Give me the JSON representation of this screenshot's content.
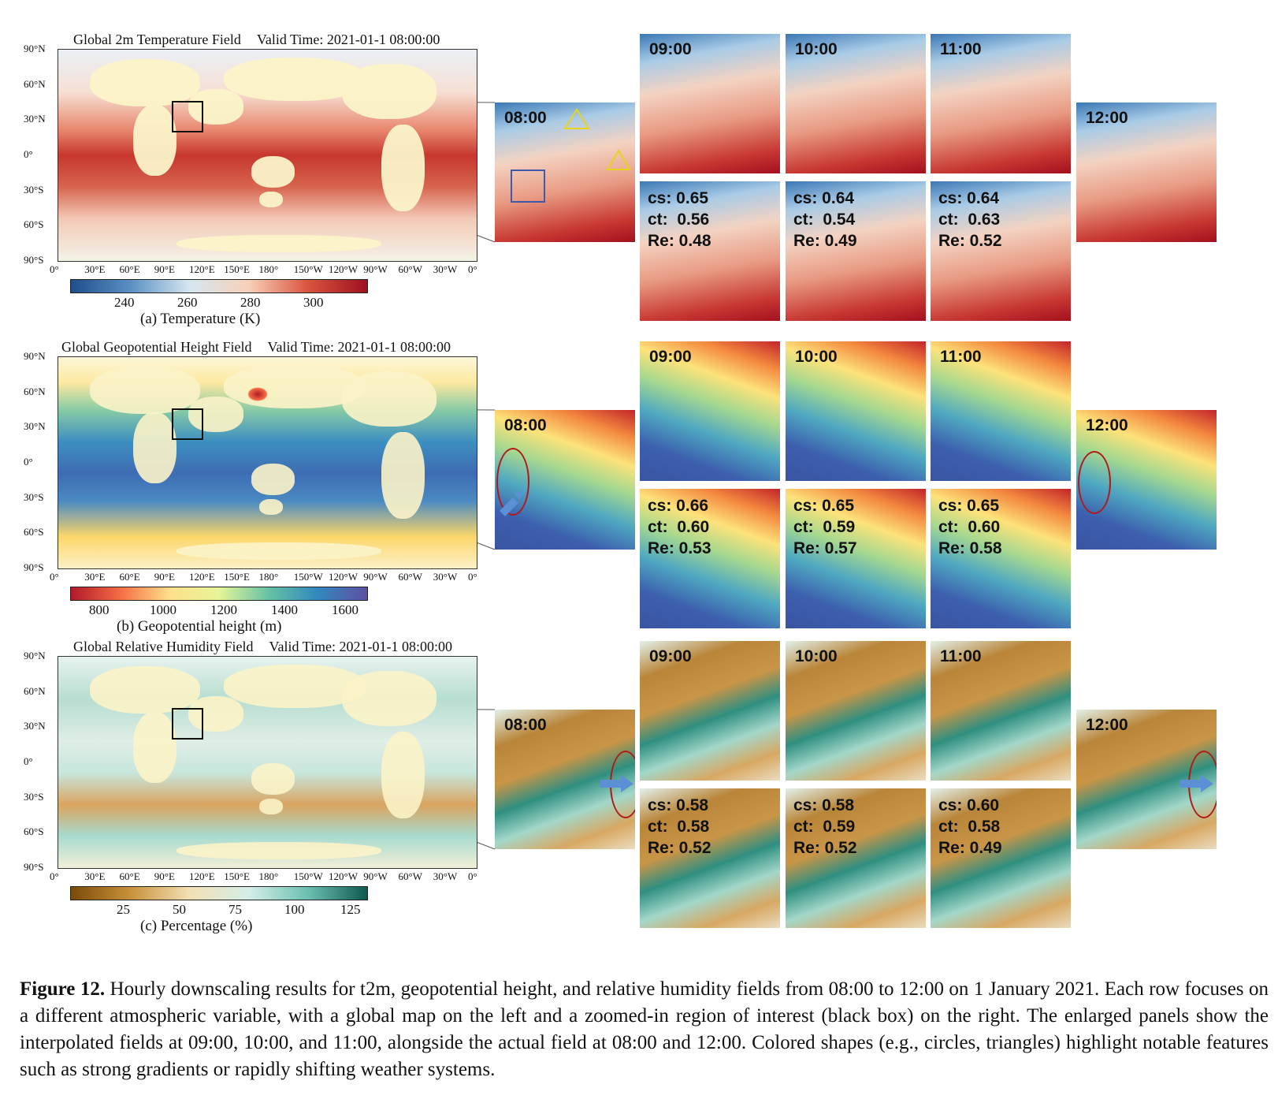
{
  "rows": [
    {
      "id": "t2m",
      "map_title": "Global 2m Temperature Field",
      "valid_time": "Valid Time: 2021-01-1 08:00:00",
      "colorbar": {
        "ticks": [
          "240",
          "260",
          "280",
          "300"
        ],
        "label": "(a) Temperature (K)",
        "colors": [
          "#1f4e8c",
          "#5a8fc2",
          "#d6e6f0",
          "#f7d0b8",
          "#d9543f",
          "#9e1020"
        ]
      },
      "start_tile": "08:00",
      "end_tile": "12:00",
      "top_tiles": [
        "09:00",
        "10:00",
        "11:00"
      ],
      "metrics": [
        {
          "cs": "cs: 0.65",
          "ct": "ct:  0.56",
          "re": "Re: 0.48"
        },
        {
          "cs": "cs: 0.64",
          "ct": "ct:  0.54",
          "re": "Re: 0.49"
        },
        {
          "cs": "cs: 0.64",
          "ct": "ct:  0.63",
          "re": "Re: 0.52"
        }
      ]
    },
    {
      "id": "geopotential",
      "map_title": "Global Geopotential Height Field",
      "valid_time": "Valid Time: 2021-01-1 08:00:00",
      "colorbar": {
        "ticks": [
          "800",
          "1000",
          "1200",
          "1400",
          "1600"
        ],
        "label": "(b) Geopotential height (m)",
        "colors": [
          "#b2182b",
          "#f46d43",
          "#fee08b",
          "#e6f598",
          "#66c2a5",
          "#3288bd",
          "#5e4fa2"
        ]
      },
      "start_tile": "08:00",
      "end_tile": "12:00",
      "top_tiles": [
        "09:00",
        "10:00",
        "11:00"
      ],
      "metrics": [
        {
          "cs": "cs: 0.66",
          "ct": "ct:  0.60",
          "re": "Re: 0.53"
        },
        {
          "cs": "cs: 0.65",
          "ct": "ct:  0.59",
          "re": "Re: 0.57"
        },
        {
          "cs": "cs: 0.65",
          "ct": "ct:  0.60",
          "re": "Re: 0.58"
        }
      ]
    },
    {
      "id": "humidity",
      "map_title": "Global Relative Humidity Field",
      "valid_time": "Valid Time: 2021-01-1 08:00:00",
      "colorbar": {
        "ticks": [
          "25",
          "50",
          "75",
          "100",
          "125"
        ],
        "label": "(c) Percentage (%)",
        "colors": [
          "#7a4a0a",
          "#c8913a",
          "#f2e0b5",
          "#d5eee8",
          "#6cc0b0",
          "#0d5a4e"
        ]
      },
      "start_tile": "08:00",
      "end_tile": "12:00",
      "top_tiles": [
        "09:00",
        "10:00",
        "11:00"
      ],
      "metrics": [
        {
          "cs": "cs: 0.58",
          "ct": "ct:  0.58",
          "re": "Re: 0.52"
        },
        {
          "cs": "cs: 0.58",
          "ct": "ct:  0.59",
          "re": "Re: 0.52"
        },
        {
          "cs": "cs: 0.60",
          "ct": "ct:  0.58",
          "re": "Re: 0.49"
        }
      ]
    }
  ],
  "lat_labels": [
    "90°N",
    "60°N",
    "30°N",
    "0°",
    "30°S",
    "60°S",
    "90°S"
  ],
  "lon_labels": [
    "0°",
    "30°E",
    "60°E",
    "90°E",
    "120°E",
    "150°E",
    "180°",
    "150°W",
    "120°W",
    "90°W",
    "60°W",
    "30°W",
    "0°"
  ],
  "caption": {
    "label": "Figure 12.",
    "text": " Hourly downscaling results for t2m, geopotential height, and relative humidity fields from 08:00 to 12:00 on 1 January 2021. Each row focuses on a different atmospheric variable, with a global map on the left and a zoomed-in region of interest (black box) on the right. The enlarged panels show the interpolated fields at 09:00, 10:00, and 11:00, alongside the actual field at 08:00 and 12:00. Colored shapes (e.g., circles, triangles) highlight notable features such as strong gradients or rapidly shifting weather systems."
  }
}
